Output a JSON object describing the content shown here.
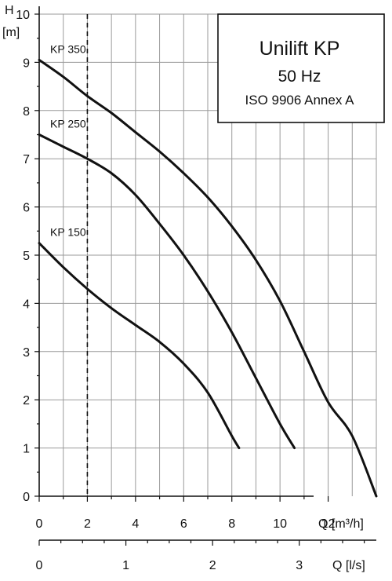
{
  "chart_data": {
    "type": "line",
    "title": {
      "line1": "Unilift KP",
      "line2": "50 Hz",
      "line3": "ISO 9906 Annex A"
    },
    "y_axis": {
      "label": "H",
      "unit": "[m]",
      "range": [
        0,
        10
      ],
      "ticks": [
        "0",
        "1",
        "2",
        "3",
        "4",
        "5",
        "6",
        "7",
        "8",
        "9",
        "10"
      ]
    },
    "x_axis": {
      "label": "Q [m³/h]",
      "range": [
        0,
        14
      ],
      "ticks": [
        "0",
        "2",
        "4",
        "6",
        "8",
        "10",
        "12"
      ]
    },
    "x_axis_secondary": {
      "label": "Q [l/s]",
      "range": [
        0,
        3.889
      ],
      "ticks": [
        "0",
        "1",
        "2",
        "3"
      ]
    },
    "reference_line": {
      "x": 2,
      "style": "dashed"
    },
    "grid": true,
    "series": [
      {
        "name": "KP 350",
        "x": [
          0,
          1,
          2,
          3,
          4,
          5,
          6,
          7,
          8,
          9,
          10,
          11,
          12,
          13,
          14
        ],
        "y": [
          9.05,
          8.7,
          8.3,
          7.95,
          7.55,
          7.15,
          6.7,
          6.2,
          5.6,
          4.9,
          4.05,
          3.0,
          1.95,
          1.25,
          0
        ]
      },
      {
        "name": "KP 250",
        "x": [
          0,
          1,
          2,
          3,
          4,
          5,
          6,
          7,
          8,
          9,
          10,
          10.6
        ],
        "y": [
          7.5,
          7.25,
          7.0,
          6.7,
          6.25,
          5.65,
          5.0,
          4.25,
          3.4,
          2.45,
          1.5,
          1.0
        ]
      },
      {
        "name": "KP 150",
        "x": [
          0,
          1,
          2,
          3,
          4,
          5,
          6,
          7,
          8,
          8.3
        ],
        "y": [
          5.25,
          4.75,
          4.3,
          3.9,
          3.55,
          3.2,
          2.75,
          2.15,
          1.25,
          1.0
        ]
      }
    ]
  }
}
